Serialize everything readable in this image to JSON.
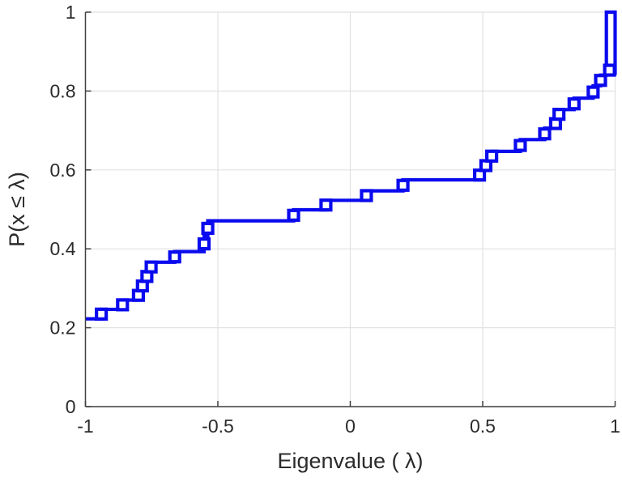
{
  "figure": {
    "title": "",
    "xlabel": "Eigenvalue (  λ)",
    "ylabel": "P(x ≤ λ)"
  },
  "chart_data": {
    "type": "line",
    "style": "stairs-ecdf",
    "title": "",
    "xlabel": "Eigenvalue (  λ)",
    "ylabel": "P(x ≤ λ)",
    "xlim": [
      -1,
      1
    ],
    "ylim": [
      0,
      1
    ],
    "xticks": [
      -1,
      -0.5,
      0,
      0.5,
      1
    ],
    "xtick_labels": [
      "-1",
      "-0.5",
      "0",
      "0.5",
      "1"
    ],
    "yticks": [
      0,
      0.2,
      0.4,
      0.6,
      0.8,
      1
    ],
    "ytick_labels": [
      "0",
      "0.2",
      "0.4",
      "0.6",
      "0.8",
      "1"
    ],
    "grid": true,
    "legend": null,
    "line_color": "#0a0aee",
    "line_width": 4.2,
    "marker": "hollow-square",
    "marker_size": 12,
    "grid_color": "#e1e1e1",
    "spine_color": "#404040",
    "start_point": [
      -1,
      0.2225
    ],
    "steps": [
      [
        -0.94,
        0.2465
      ],
      [
        -0.86,
        0.27
      ],
      [
        -0.8,
        0.294
      ],
      [
        -0.785,
        0.318
      ],
      [
        -0.768,
        0.342
      ],
      [
        -0.752,
        0.366
      ],
      [
        -0.663,
        0.393
      ],
      [
        -0.552,
        0.4325
      ],
      [
        -0.538,
        0.471
      ],
      [
        -0.214,
        0.499
      ],
      [
        -0.092,
        0.523
      ],
      [
        0.061,
        0.547
      ],
      [
        0.199,
        0.575
      ],
      [
        0.488,
        0.599
      ],
      [
        0.512,
        0.623
      ],
      [
        0.534,
        0.647
      ],
      [
        0.642,
        0.677
      ],
      [
        0.734,
        0.706
      ],
      [
        0.775,
        0.729
      ],
      [
        0.788,
        0.753
      ],
      [
        0.845,
        0.782
      ],
      [
        0.917,
        0.8133
      ],
      [
        0.945,
        0.8405
      ],
      [
        0.967,
        1.0
      ]
    ],
    "end_flat_to_x": 1.0,
    "end_drop_to_y": 0.8405,
    "markers": [
      [
        -0.94,
        0.2345
      ],
      [
        -0.86,
        0.258
      ],
      [
        -0.8,
        0.282
      ],
      [
        -0.785,
        0.306
      ],
      [
        -0.768,
        0.33
      ],
      [
        -0.752,
        0.354
      ],
      [
        -0.663,
        0.3795
      ],
      [
        -0.552,
        0.4125
      ],
      [
        -0.538,
        0.452
      ],
      [
        -0.214,
        0.485
      ],
      [
        -0.092,
        0.511
      ],
      [
        0.061,
        0.535
      ],
      [
        0.199,
        0.561
      ],
      [
        0.488,
        0.587
      ],
      [
        0.512,
        0.611
      ],
      [
        0.534,
        0.635
      ],
      [
        0.642,
        0.662
      ],
      [
        0.734,
        0.6915
      ],
      [
        0.775,
        0.7175
      ],
      [
        0.788,
        0.741
      ],
      [
        0.845,
        0.7675
      ],
      [
        0.917,
        0.7975
      ],
      [
        0.945,
        0.827
      ],
      [
        0.979,
        0.853
      ]
    ]
  }
}
